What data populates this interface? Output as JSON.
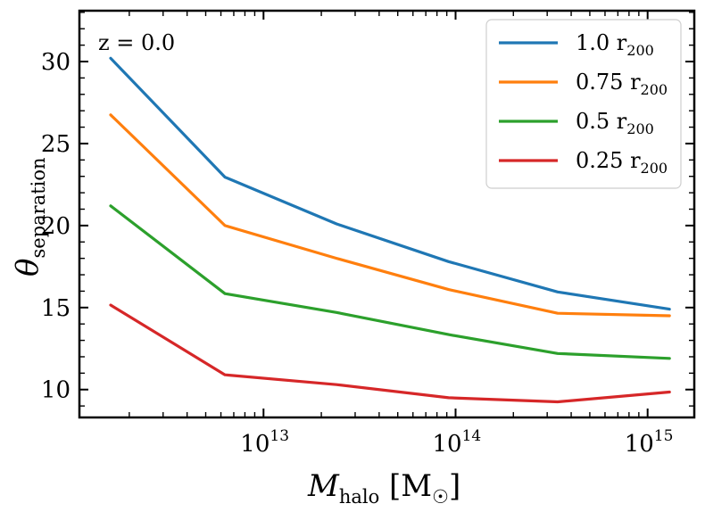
{
  "chart_data": {
    "type": "line",
    "xscale": "log",
    "x": [
      1600000000000.0,
      6300000000000.0,
      24000000000000.0,
      92000000000000.0,
      340000000000000.0,
      1300000000000000.0
    ],
    "xlim": [
      1100000000000.0,
      1750000000000000.0
    ],
    "ylim": [
      8.3,
      33.1
    ],
    "xticks": [
      {
        "value": 10000000000000.0,
        "base": "10",
        "exp": "13"
      },
      {
        "value": 100000000000000.0,
        "base": "10",
        "exp": "14"
      },
      {
        "value": 1000000000000000.0,
        "base": "10",
        "exp": "15"
      }
    ],
    "yticks": [
      10,
      15,
      20,
      25,
      30
    ],
    "xlabel": {
      "main": "M",
      "sub": "halo",
      "unit_open": "[M",
      "unit_symbol": "☉",
      "unit_close": "]"
    },
    "ylabel": {
      "main": "θ",
      "sub": "separation"
    },
    "annotation": "z = 0.0",
    "legend_position": "upper-right",
    "series": [
      {
        "name": "1.0 r",
        "sub": "200",
        "color": "#1f77b4",
        "values": [
          30.2,
          22.95,
          20.1,
          17.8,
          15.95,
          14.9
        ]
      },
      {
        "name": "0.75 r",
        "sub": "200",
        "color": "#ff7f0e",
        "values": [
          26.75,
          20.0,
          18.0,
          16.1,
          14.65,
          14.5
        ]
      },
      {
        "name": "0.5 r",
        "sub": "200",
        "color": "#2ca02c",
        "values": [
          21.2,
          15.85,
          14.7,
          13.35,
          12.2,
          11.9
        ]
      },
      {
        "name": "0.25 r",
        "sub": "200",
        "color": "#d62728",
        "values": [
          15.15,
          10.9,
          10.3,
          9.5,
          9.25,
          9.85
        ]
      }
    ]
  }
}
